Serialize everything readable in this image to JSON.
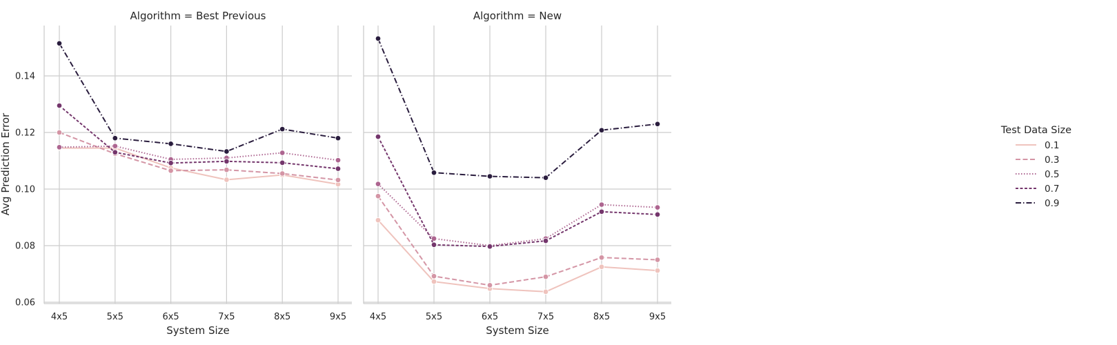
{
  "chart_data": {
    "type": "line",
    "ylabel": "Avg Prediction Error",
    "xlabel": "System Size",
    "categories": [
      "4x5",
      "5x5",
      "6x5",
      "7x5",
      "8x5",
      "9x5"
    ],
    "ylim": [
      0.06,
      0.158
    ],
    "yticks": [
      "0.06",
      "0.08",
      "0.10",
      "0.12",
      "0.14"
    ],
    "grid": true,
    "legend": {
      "title": "Test Data Size",
      "position": "right",
      "entries": [
        {
          "label": "0.1",
          "color": "#efc3bd",
          "dash": "solid"
        },
        {
          "label": "0.3",
          "color": "#d495a5",
          "dash": "dashed"
        },
        {
          "label": "0.5",
          "color": "#ad6590",
          "dash": "dotted"
        },
        {
          "label": "0.7",
          "color": "#74366c",
          "dash": "densedash"
        },
        {
          "label": "0.9",
          "color": "#2a1d3e",
          "dash": "dashdot"
        }
      ]
    },
    "panels": [
      {
        "title": "Algorithm = Best Previous",
        "series": [
          {
            "name": "0.1",
            "values": [
              0.1145,
              0.1145,
              0.1075,
              0.1033,
              0.105,
              0.1017
            ]
          },
          {
            "name": "0.3",
            "values": [
              0.12,
              0.1125,
              0.1065,
              0.1068,
              0.1055,
              0.1032
            ]
          },
          {
            "name": "0.5",
            "values": [
              0.1148,
              0.1152,
              0.1105,
              0.111,
              0.1128,
              0.1102
            ]
          },
          {
            "name": "0.7",
            "values": [
              0.1295,
              0.113,
              0.1092,
              0.1098,
              0.1093,
              0.1072
            ]
          },
          {
            "name": "0.9",
            "values": [
              0.1515,
              0.118,
              0.116,
              0.1133,
              0.1212,
              0.118
            ]
          }
        ]
      },
      {
        "title": "Algorithm = New",
        "series": [
          {
            "name": "0.1",
            "values": [
              0.089,
              0.0673,
              0.0648,
              0.0637,
              0.0725,
              0.0712
            ]
          },
          {
            "name": "0.3",
            "values": [
              0.0975,
              0.0692,
              0.066,
              0.069,
              0.0758,
              0.075
            ]
          },
          {
            "name": "0.5",
            "values": [
              0.1018,
              0.0825,
              0.08,
              0.0825,
              0.0945,
              0.0935
            ]
          },
          {
            "name": "0.7",
            "values": [
              0.1185,
              0.0803,
              0.0797,
              0.0817,
              0.092,
              0.091
            ]
          },
          {
            "name": "0.9",
            "values": [
              0.1532,
              0.1058,
              0.1045,
              0.104,
              0.1208,
              0.123
            ]
          }
        ]
      }
    ]
  }
}
